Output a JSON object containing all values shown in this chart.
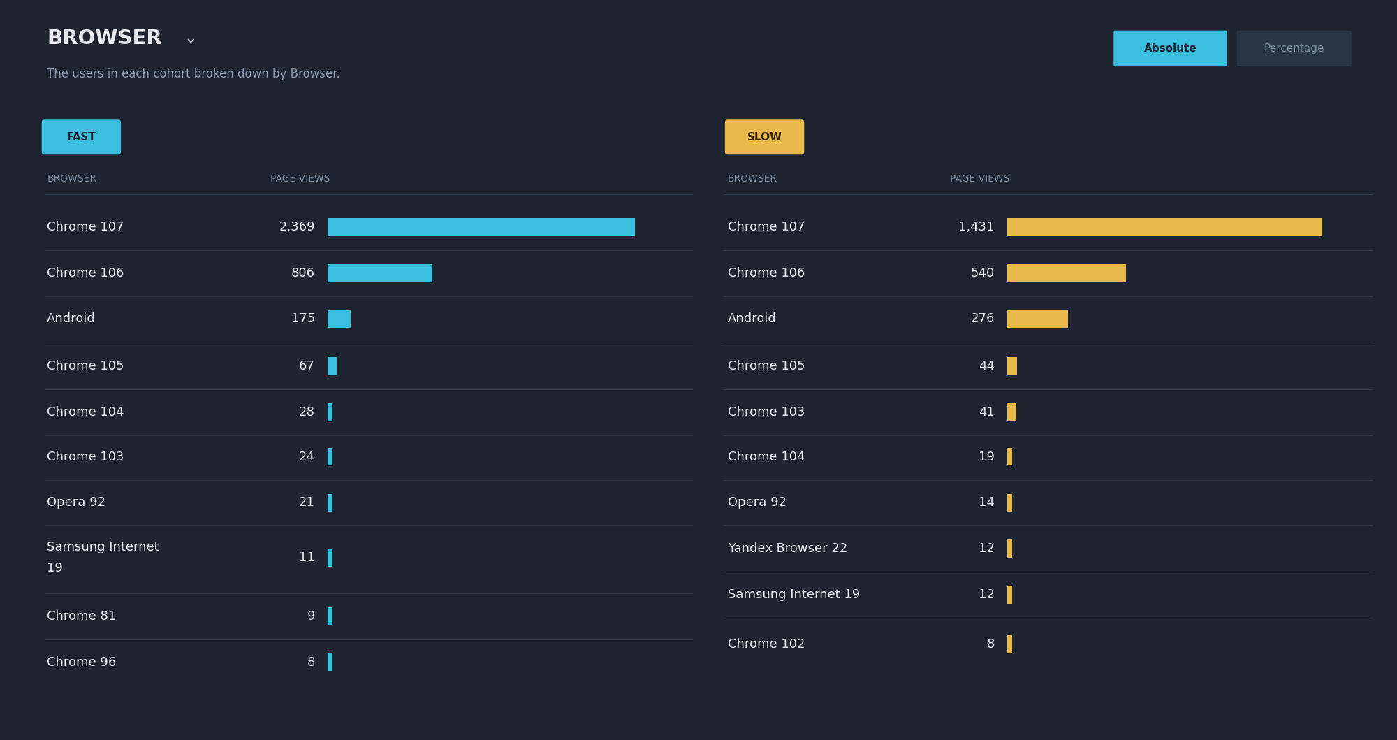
{
  "title": "BROWSER",
  "title_arrow": "⌄",
  "subtitle": "The users in each cohort broken down by Browser.",
  "bg_color": "#1e2430",
  "text_color_white": "#e8eaf0",
  "text_color_gray": "#8a9bb0",
  "header_color": "#7a8ba0",
  "divider_color": "#2e3a4a",
  "fast_label": "FAST",
  "fast_color": "#3bbfdf",
  "slow_label": "SLOW",
  "slow_color": "#e8b84b",
  "btn_absolute_bg": "#3bbfdf",
  "btn_absolute_text": "#1a2535",
  "btn_percentage_bg": "#2a3545",
  "btn_percentage_text": "#7a8ba0",
  "fast_data": [
    {
      "browser": "Chrome 107",
      "views": 2369
    },
    {
      "browser": "Chrome 106",
      "views": 806
    },
    {
      "browser": "Android",
      "views": 175
    },
    {
      "browser": "Chrome 105",
      "views": 67
    },
    {
      "browser": "Chrome 104",
      "views": 28
    },
    {
      "browser": "Chrome 103",
      "views": 24
    },
    {
      "browser": "Opera 92",
      "views": 21
    },
    {
      "browser": "Samsung Internet\n19",
      "views": 11
    },
    {
      "browser": "Chrome 81",
      "views": 9
    },
    {
      "browser": "Chrome 96",
      "views": 8
    }
  ],
  "slow_data": [
    {
      "browser": "Chrome 107",
      "views": 1431
    },
    {
      "browser": "Chrome 106",
      "views": 540
    },
    {
      "browser": "Android",
      "views": 276
    },
    {
      "browser": "Chrome 105",
      "views": 44
    },
    {
      "browser": "Chrome 103",
      "views": 41
    },
    {
      "browser": "Chrome 104",
      "views": 19
    },
    {
      "browser": "Opera 92",
      "views": 14
    },
    {
      "browser": "Yandex Browser 22",
      "views": 12
    },
    {
      "browser": "Samsung Internet 19",
      "views": 12
    },
    {
      "browser": "Chrome 102",
      "views": 8
    }
  ]
}
